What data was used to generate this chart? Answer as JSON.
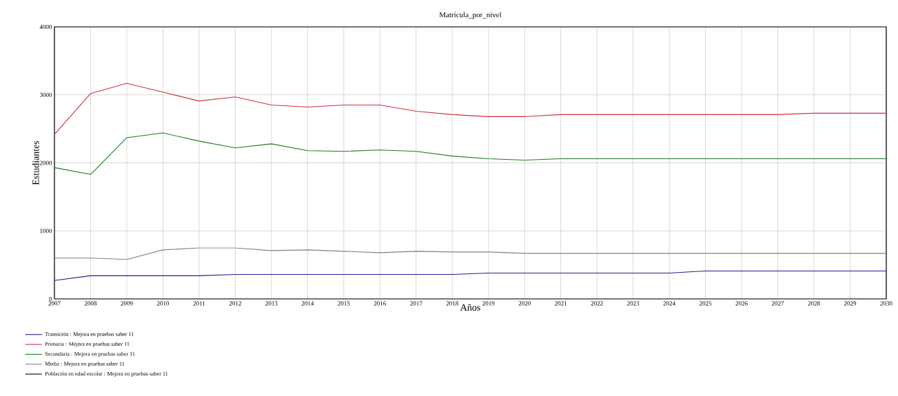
{
  "chart_data": {
    "type": "line",
    "title": "Matrícula_por_nivel",
    "xlabel": "Años",
    "ylabel": "Estudiantes",
    "x": [
      2007,
      2008,
      2009,
      2010,
      2011,
      2012,
      2013,
      2014,
      2015,
      2016,
      2017,
      2018,
      2019,
      2020,
      2021,
      2022,
      2023,
      2024,
      2025,
      2026,
      2027,
      2028,
      2029,
      2030
    ],
    "series": [
      {
        "name": "Transición : Mejora en pruebas saber 11",
        "color": "#1f1f8f",
        "values": [
          270,
          340,
          340,
          340,
          340,
          360,
          360,
          360,
          360,
          360,
          360,
          360,
          380,
          380,
          380,
          380,
          380,
          380,
          410,
          410,
          410,
          410,
          410,
          410
        ]
      },
      {
        "name": "Primaria : Mejora en pruebas saber 11",
        "color": "#d0303c",
        "values": [
          2420,
          3020,
          3170,
          3040,
          2910,
          2970,
          2850,
          2820,
          2850,
          2850,
          2760,
          2710,
          2680,
          2680,
          2710,
          2710,
          2710,
          2710,
          2710,
          2710,
          2710,
          2730,
          2730,
          2730
        ]
      },
      {
        "name": "Secundaria : Mejora en pruebas saber 11",
        "color": "#1f7a1f",
        "values": [
          1930,
          1830,
          2370,
          2440,
          2320,
          2220,
          2280,
          2180,
          2170,
          2190,
          2170,
          2100,
          2060,
          2040,
          2060,
          2060,
          2060,
          2060,
          2060,
          2060,
          2060,
          2060,
          2060,
          2060
        ]
      },
      {
        "name": "Media : Mejora en pruebas saber 11",
        "color": "#808080",
        "values": [
          600,
          600,
          580,
          720,
          750,
          750,
          710,
          720,
          700,
          680,
          700,
          690,
          690,
          670,
          670,
          670,
          670,
          670,
          670,
          670,
          670,
          670,
          670,
          670
        ]
      },
      {
        "name": "Población en edad escolar : Mejora en pruebas saber 11",
        "color": "#000000",
        "values": [
          null,
          null,
          null,
          null,
          null,
          null,
          null,
          null,
          null,
          null,
          null,
          null,
          null,
          null,
          null,
          null,
          null,
          null,
          null,
          null,
          null,
          null,
          null,
          null
        ]
      }
    ],
    "xlim": [
      2007,
      2030
    ],
    "ylim": [
      0,
      4000
    ],
    "xticks": [
      2007,
      2008,
      2009,
      2010,
      2011,
      2012,
      2013,
      2014,
      2015,
      2016,
      2017,
      2018,
      2019,
      2020,
      2021,
      2022,
      2023,
      2024,
      2025,
      2026,
      2027,
      2028,
      2029,
      2030
    ],
    "yticks": [
      0,
      1000,
      2000,
      3000,
      4000
    ],
    "grid": true,
    "legend": "bottom",
    "marker": "none",
    "line_style": "solid"
  }
}
